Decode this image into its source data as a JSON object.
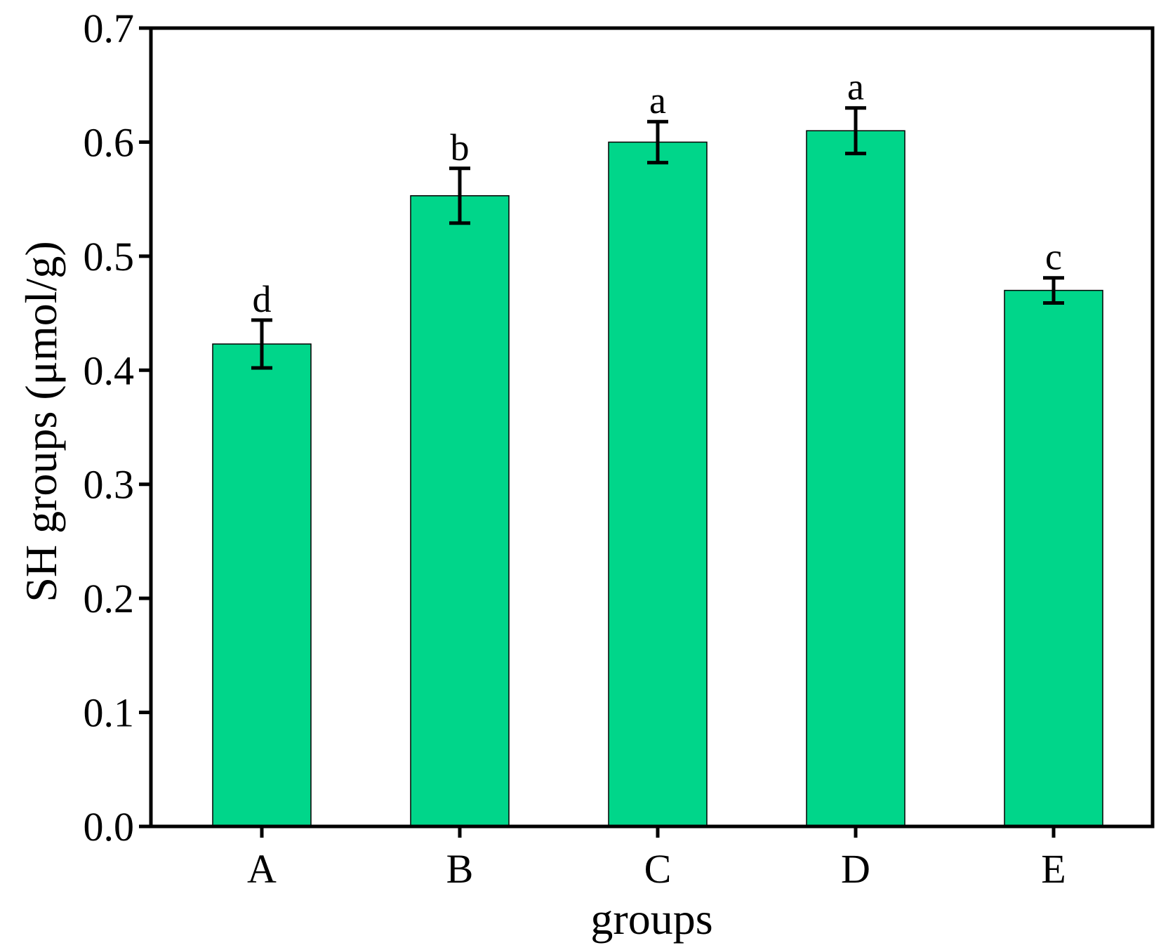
{
  "chart_data": {
    "type": "bar",
    "title": "",
    "xlabel": "groups",
    "ylabel": "SH groups (μmol/g)",
    "ylim": [
      0,
      0.7
    ],
    "yticks": [
      "0.0",
      "0.1",
      "0.2",
      "0.3",
      "0.4",
      "0.5",
      "0.6",
      "0.7"
    ],
    "ytick_values": [
      0.0,
      0.1,
      0.2,
      0.3,
      0.4,
      0.5,
      0.6,
      0.7
    ],
    "categories": [
      "A",
      "B",
      "C",
      "D",
      "E"
    ],
    "values": [
      0.423,
      0.553,
      0.6,
      0.61,
      0.47
    ],
    "errors": [
      0.021,
      0.024,
      0.018,
      0.02,
      0.011
    ],
    "significance": [
      "d",
      "b",
      "a",
      "a",
      "c"
    ],
    "grid": false,
    "legend": "none",
    "bar_color": "#00D68A"
  }
}
